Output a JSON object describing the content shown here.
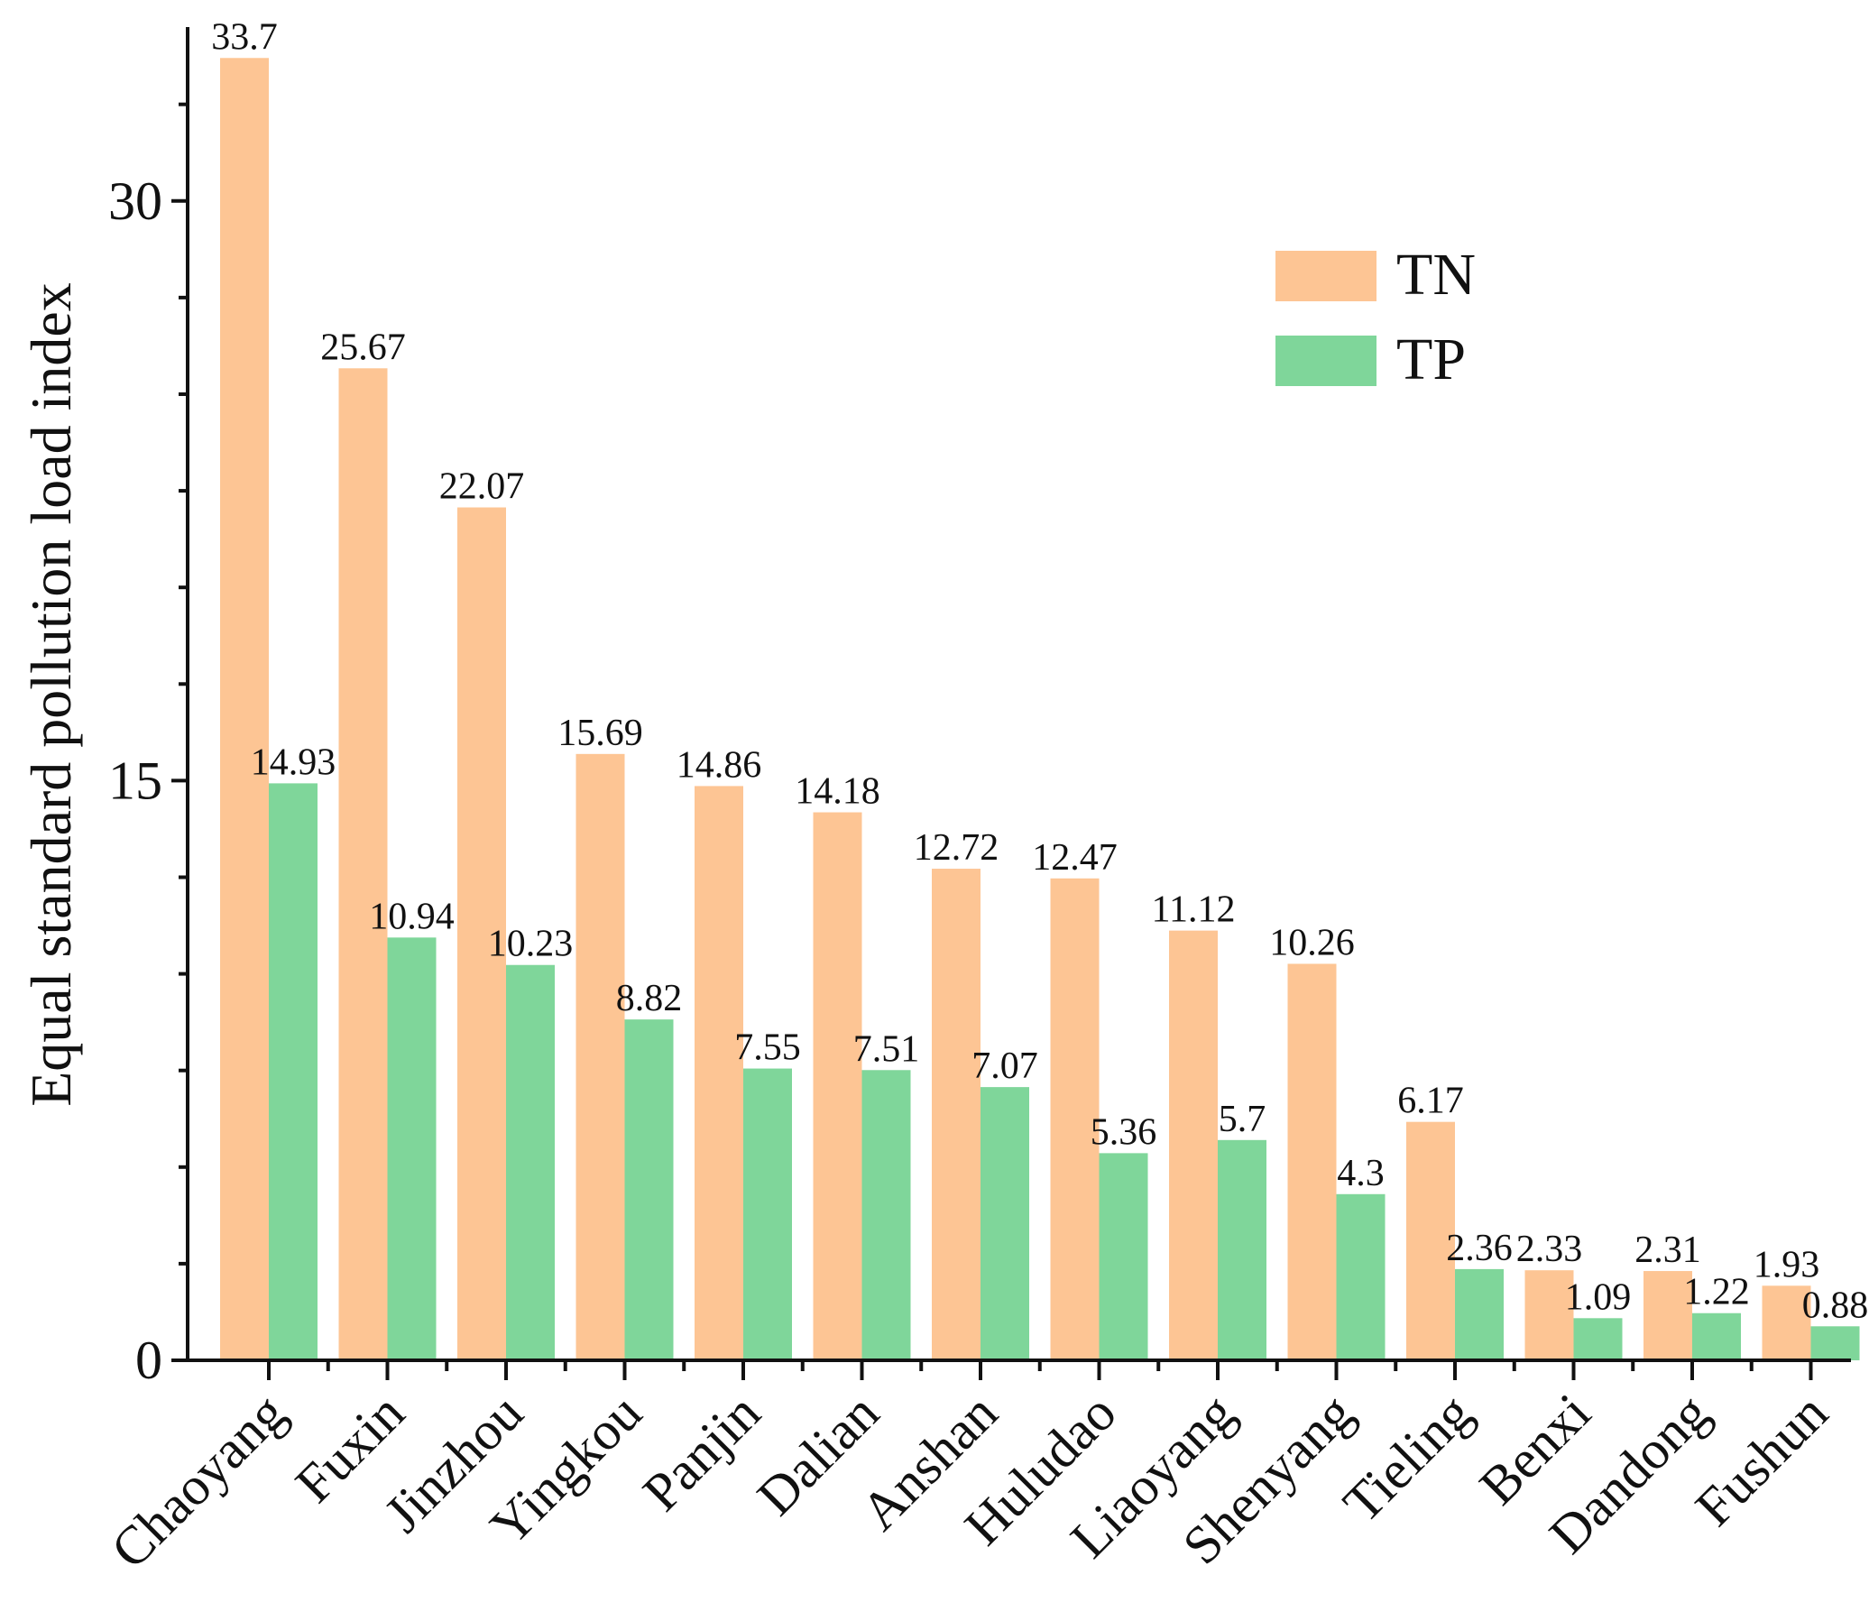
{
  "chart_data": {
    "type": "bar",
    "title": "",
    "xlabel": "",
    "ylabel": "Equal standard pollution load index",
    "ylim": [
      0,
      34.5
    ],
    "yticks": [
      0,
      15,
      30
    ],
    "categories": [
      "Chaoyang",
      "Fuxin",
      "Jinzhou",
      "Yingkou",
      "Panjin",
      "Dalian",
      "Anshan",
      "Huludao",
      "Liaoyang",
      "Shenyang",
      "Tieling",
      "Benxi",
      "Dandong",
      "Fushun"
    ],
    "series": [
      {
        "name": "TN",
        "color": "#fdc594",
        "values": [
          33.7,
          25.67,
          22.07,
          15.69,
          14.86,
          14.18,
          12.72,
          12.47,
          11.12,
          10.26,
          6.17,
          2.33,
          2.31,
          1.93
        ]
      },
      {
        "name": "TP",
        "color": "#7fd69a",
        "values": [
          14.93,
          10.94,
          10.23,
          8.82,
          7.55,
          7.51,
          7.07,
          5.36,
          5.7,
          4.3,
          2.36,
          1.09,
          1.22,
          0.88
        ]
      }
    ],
    "value_labels": {
      "TN": [
        "33.7",
        "25.67",
        "22.07",
        "15.69",
        "14.86",
        "14.18",
        "12.72",
        "12.47",
        "11.12",
        "10.26",
        "6.17",
        "2.33",
        "2.31",
        "1.93"
      ],
      "TP": [
        "14.93",
        "10.94",
        "10.23",
        "8.82",
        "7.55",
        "7.51",
        "7.07",
        "5.36",
        "5.7",
        "4.3",
        "2.36",
        "1.09",
        "1.22",
        "0.88"
      ]
    },
    "legend": {
      "position": "top-right",
      "entries": [
        "TN",
        "TP"
      ]
    },
    "grid": false
  }
}
